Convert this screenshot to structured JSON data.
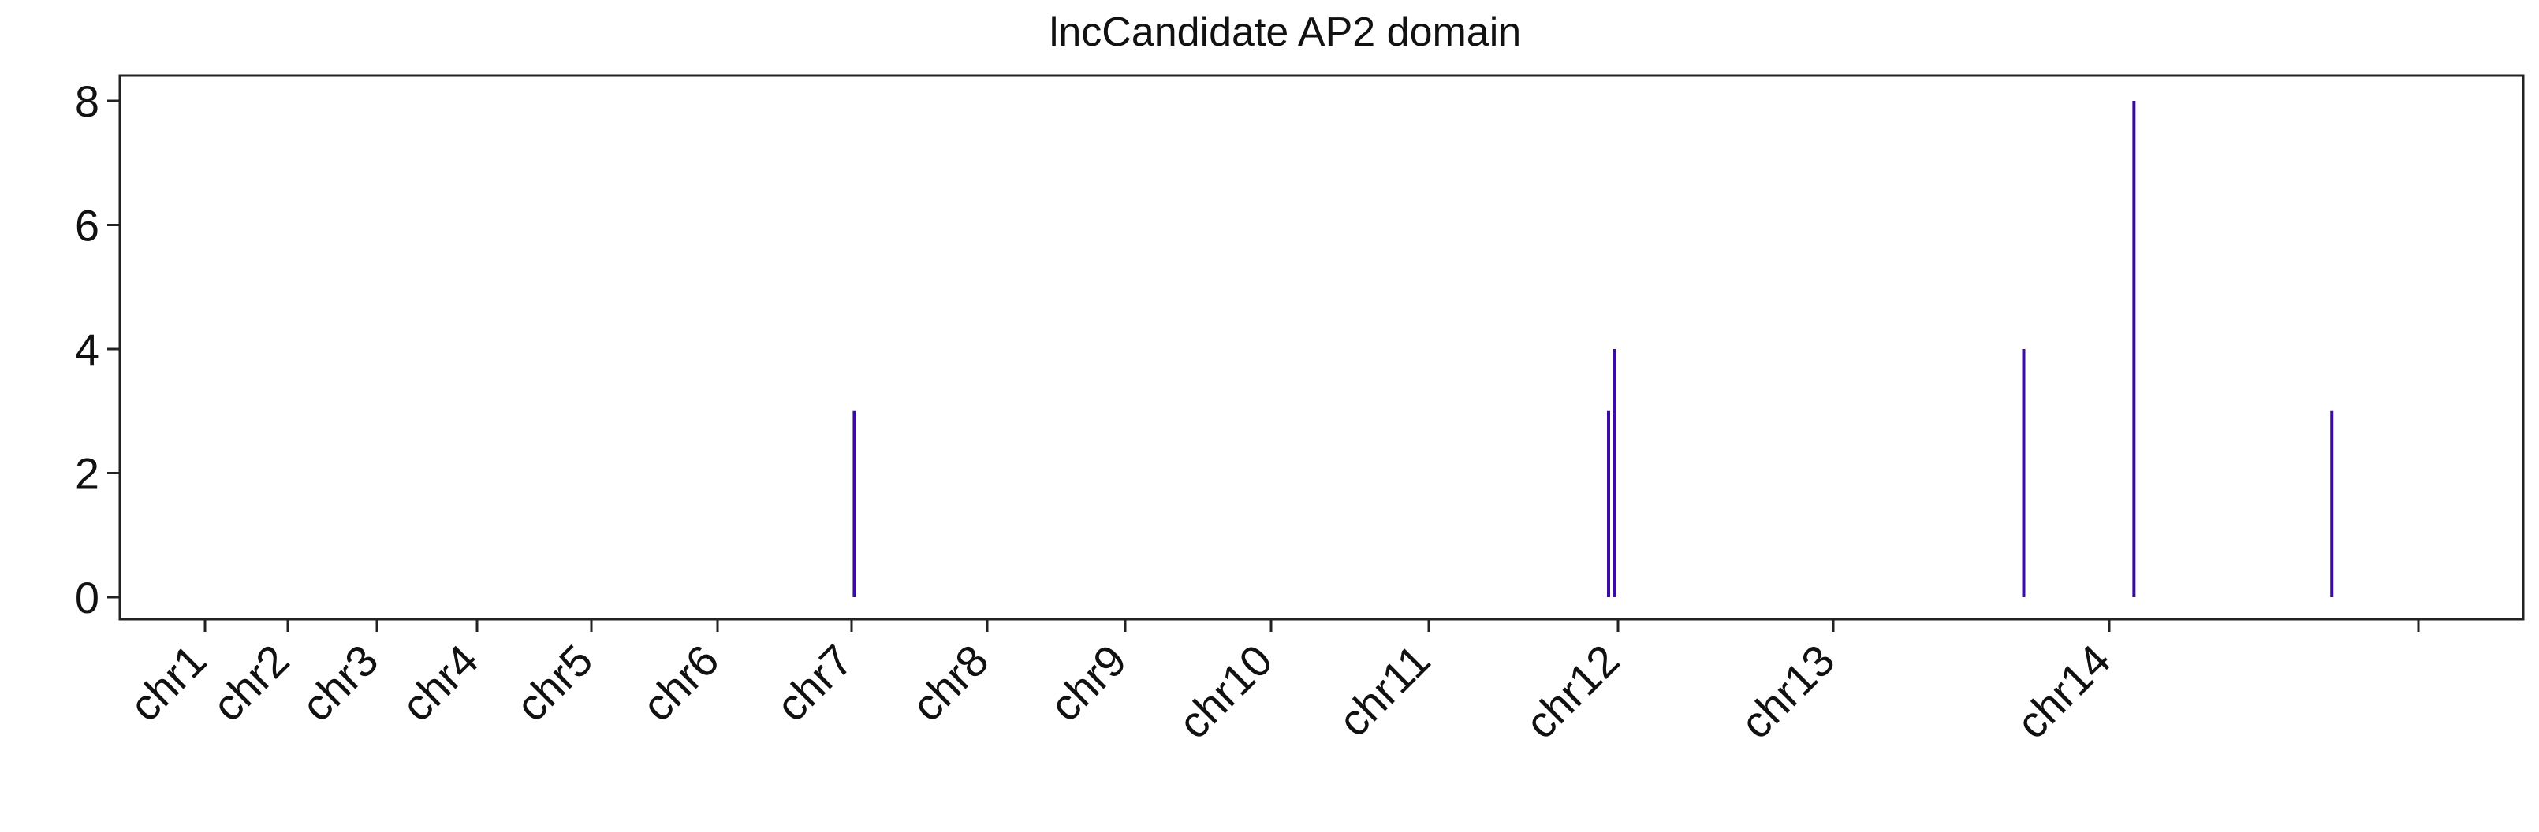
{
  "chart_data": {
    "type": "bar",
    "title": "lncCandidate AP2 domain",
    "xlabel": "",
    "ylabel": "",
    "ylim": [
      0,
      8
    ],
    "yticks": [
      0,
      2,
      4,
      6,
      8
    ],
    "grid": false,
    "legend": "none",
    "bar_color": "#3a0ca3",
    "categories": [
      "chr1",
      "chr2",
      "chr3",
      "chr4",
      "chr5",
      "chr6",
      "chr7",
      "chr8",
      "chr9",
      "chr10",
      "chr11",
      "chr12",
      "chr13",
      "chr14"
    ],
    "category_boundaries": [
      0,
      1,
      2,
      3,
      4,
      5,
      6,
      7,
      8,
      9,
      10,
      11,
      12,
      13,
      14
    ],
    "peaks": [
      {
        "chromosome": "chr7",
        "position": 6.02,
        "value": 3
      },
      {
        "chromosome": "chr11",
        "position": 10.95,
        "value": 3
      },
      {
        "chromosome": "chr11",
        "position": 10.98,
        "value": 4
      },
      {
        "chromosome": "chr13",
        "position": 12.69,
        "value": 4
      },
      {
        "chromosome": "chr14",
        "position": 13.08,
        "value": 8
      },
      {
        "chromosome": "chr14",
        "position": 13.72,
        "value": 3
      }
    ]
  }
}
